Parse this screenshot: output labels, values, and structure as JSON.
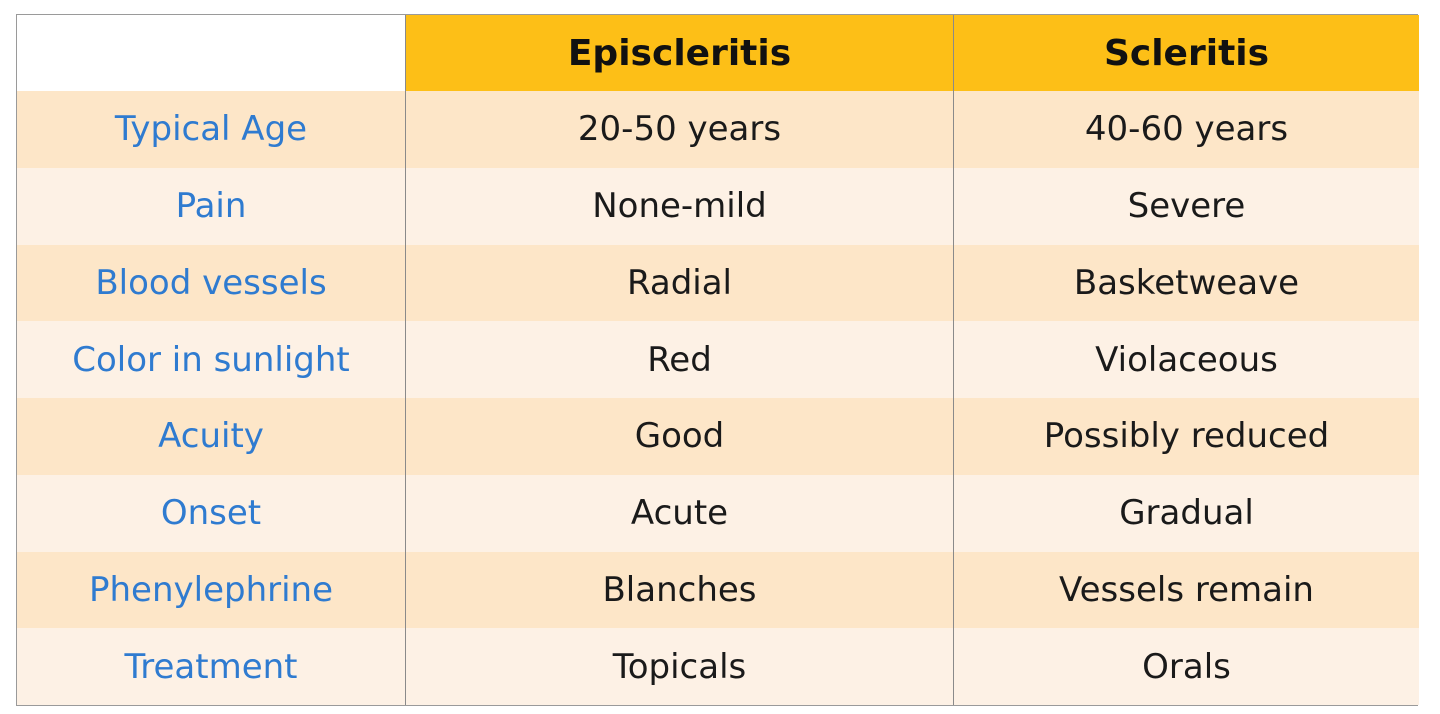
{
  "table": {
    "columns": [
      "Episcleritis",
      "Scleritis"
    ],
    "rows": [
      [
        "Typical Age",
        "20-50 years",
        "40-60 years"
      ],
      [
        "Pain",
        "None-mild",
        "Severe"
      ],
      [
        "Blood vessels",
        "Radial",
        "Basketweave"
      ],
      [
        "Color in sunlight",
        "Red",
        "Violaceous"
      ],
      [
        "Acuity",
        "Good",
        "Possibly reduced"
      ],
      [
        "Onset",
        "Acute",
        "Gradual"
      ],
      [
        "Phenylephrine",
        "Blanches",
        "Vessels remain"
      ],
      [
        "Treatment",
        "Topicals",
        "Orals"
      ]
    ]
  }
}
